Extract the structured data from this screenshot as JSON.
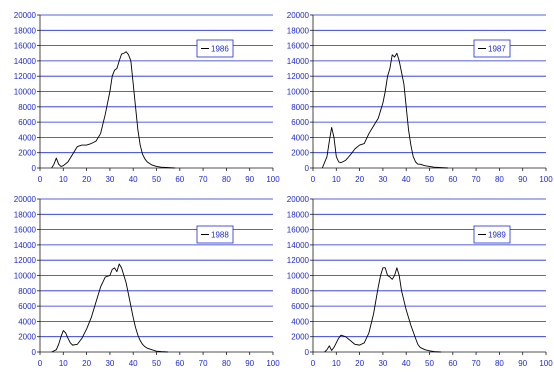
{
  "chart_data": [
    {
      "type": "line",
      "title": "",
      "xlabel": "",
      "ylabel": "",
      "xlim": [
        0,
        100
      ],
      "ylim": [
        0,
        20000
      ],
      "x_ticks": [
        0,
        10,
        20,
        30,
        40,
        50,
        60,
        70,
        80,
        90,
        100
      ],
      "y_ticks": [
        0,
        2000,
        4000,
        6000,
        8000,
        10000,
        12000,
        14000,
        16000,
        18000,
        20000
      ],
      "grid": "horizontal",
      "legend_position": "top-right",
      "series": [
        {
          "name": "1986",
          "color": "#000000",
          "x": [
            5,
            6,
            7,
            8,
            9,
            10,
            12,
            14,
            16,
            18,
            20,
            22,
            24,
            26,
            28,
            30,
            31,
            32,
            33,
            34,
            35,
            36,
            37,
            38,
            39,
            40,
            41,
            42,
            43,
            44,
            45,
            46,
            48,
            50,
            52,
            55,
            58
          ],
          "y": [
            0,
            500,
            1300,
            500,
            200,
            300,
            800,
            1800,
            2800,
            3000,
            3000,
            3200,
            3500,
            4500,
            7000,
            10000,
            12000,
            12800,
            13000,
            14000,
            14900,
            15000,
            15200,
            14800,
            14000,
            11000,
            8000,
            5000,
            3000,
            1800,
            1200,
            800,
            400,
            200,
            100,
            50,
            0
          ]
        }
      ]
    },
    {
      "type": "line",
      "title": "",
      "xlabel": "",
      "ylabel": "",
      "xlim": [
        0,
        100
      ],
      "ylim": [
        0,
        20000
      ],
      "x_ticks": [
        0,
        10,
        20,
        30,
        40,
        50,
        60,
        70,
        80,
        90,
        100
      ],
      "y_ticks": [
        0,
        2000,
        4000,
        6000,
        8000,
        10000,
        12000,
        14000,
        16000,
        18000,
        20000
      ],
      "grid": "horizontal",
      "legend_position": "top-right",
      "series": [
        {
          "name": "1987",
          "color": "#000000",
          "x": [
            4,
            6,
            7,
            8,
            9,
            10,
            11,
            12,
            14,
            16,
            18,
            20,
            22,
            24,
            26,
            28,
            30,
            31,
            32,
            33,
            34,
            35,
            36,
            37,
            38,
            39,
            40,
            41,
            42,
            43,
            44,
            45,
            46,
            48,
            50,
            52,
            55,
            58
          ],
          "y": [
            0,
            1500,
            3500,
            5300,
            4000,
            1500,
            800,
            700,
            1000,
            1700,
            2500,
            3000,
            3200,
            4500,
            5500,
            6500,
            8500,
            10000,
            12000,
            13000,
            14800,
            14500,
            15000,
            14000,
            12500,
            11000,
            8000,
            5000,
            3000,
            1500,
            800,
            500,
            500,
            300,
            200,
            100,
            50,
            0
          ]
        }
      ]
    },
    {
      "type": "line",
      "title": "",
      "xlabel": "",
      "ylabel": "",
      "xlim": [
        0,
        100
      ],
      "ylim": [
        0,
        20000
      ],
      "x_ticks": [
        0,
        10,
        20,
        30,
        40,
        50,
        60,
        70,
        80,
        90,
        100
      ],
      "y_ticks": [
        0,
        2000,
        4000,
        6000,
        8000,
        10000,
        12000,
        14000,
        16000,
        18000,
        20000
      ],
      "grid": "horizontal",
      "legend_position": "top-right",
      "series": [
        {
          "name": "1988",
          "color": "#000000",
          "x": [
            5,
            7,
            8,
            9,
            10,
            11,
            12,
            13,
            14,
            16,
            18,
            20,
            22,
            24,
            26,
            28,
            30,
            31,
            32,
            33,
            34,
            35,
            36,
            37,
            38,
            39,
            40,
            41,
            42,
            43,
            44,
            45,
            46,
            48,
            50,
            52,
            55
          ],
          "y": [
            0,
            300,
            1000,
            2000,
            2800,
            2500,
            1800,
            1200,
            900,
            1000,
            1800,
            3000,
            4500,
            6500,
            8500,
            9800,
            10000,
            10800,
            11000,
            10500,
            11500,
            11000,
            10000,
            9000,
            7500,
            6000,
            4500,
            3200,
            2200,
            1500,
            1000,
            700,
            500,
            300,
            100,
            50,
            0
          ]
        }
      ]
    },
    {
      "type": "line",
      "title": "",
      "xlabel": "",
      "ylabel": "",
      "xlim": [
        0,
        100
      ],
      "ylim": [
        0,
        20000
      ],
      "x_ticks": [
        0,
        10,
        20,
        30,
        40,
        50,
        60,
        70,
        80,
        90,
        100
      ],
      "y_ticks": [
        0,
        2000,
        4000,
        6000,
        8000,
        10000,
        12000,
        14000,
        16000,
        18000,
        20000
      ],
      "grid": "horizontal",
      "legend_position": "top-right",
      "series": [
        {
          "name": "1989",
          "color": "#000000",
          "x": [
            5,
            6,
            7,
            8,
            9,
            10,
            11,
            12,
            14,
            16,
            18,
            20,
            22,
            24,
            26,
            28,
            29,
            30,
            31,
            32,
            33,
            34,
            35,
            36,
            37,
            38,
            40,
            42,
            44,
            45,
            46,
            48,
            50,
            52,
            55
          ],
          "y": [
            0,
            300,
            800,
            200,
            600,
            1200,
            1800,
            2200,
            2000,
            1500,
            1000,
            900,
            1200,
            2500,
            5000,
            8500,
            10000,
            11000,
            11000,
            10000,
            9800,
            9500,
            10000,
            11000,
            10000,
            8000,
            5500,
            3500,
            1800,
            1000,
            600,
            300,
            150,
            50,
            0
          ]
        }
      ]
    }
  ]
}
